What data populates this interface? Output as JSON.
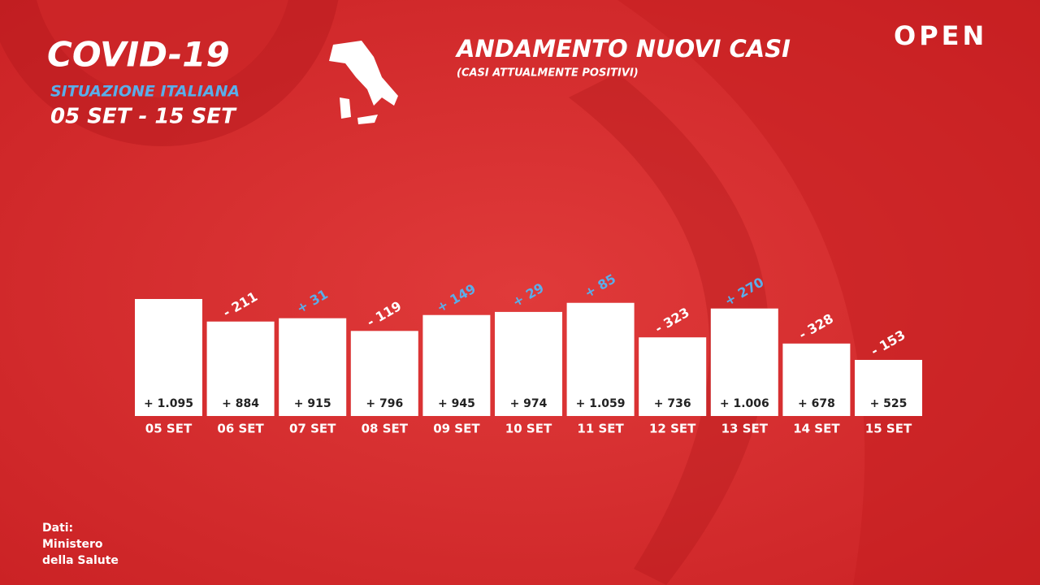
{
  "header": {
    "title": "COVID-19",
    "subtitle": "SITUAZIONE ITALIANA",
    "period": "05 SET - 15 SET",
    "logo": "OPEN"
  },
  "source": [
    "Dati:",
    "Ministero",
    "della Salute"
  ],
  "chart_data": {
    "type": "bar",
    "title": "ANDAMENTO NUOVI CASI",
    "subtitle": "(CASI ATTUALMENTE POSITIVI)",
    "categories": [
      "05 SET",
      "06 SET",
      "07 SET",
      "08 SET",
      "09 SET",
      "10 SET",
      "11 SET",
      "12 SET",
      "13 SET",
      "14 SET",
      "15 SET"
    ],
    "values": [
      1095,
      884,
      915,
      796,
      945,
      974,
      1059,
      736,
      1006,
      678,
      525
    ],
    "value_labels": [
      "+ 1.095",
      "+ 884",
      "+ 915",
      "+ 796",
      "+ 945",
      "+ 974",
      "+ 1.059",
      "+ 736",
      "+ 1.006",
      "+ 678",
      "+ 525"
    ],
    "color": "#ffffff",
    "changes": {
      "values": [
        null,
        -211,
        31,
        -119,
        149,
        29,
        85,
        -323,
        270,
        -328,
        -153
      ],
      "value_labels": [
        null,
        "- 211",
        "+ 31",
        "- 119",
        "+ 149",
        "+ 29",
        "+ 85",
        "- 323",
        "+ 270",
        "- 328",
        "- 153"
      ],
      "colors": {
        "up": "#5aaeea",
        "down": "#ffffff"
      }
    }
  }
}
